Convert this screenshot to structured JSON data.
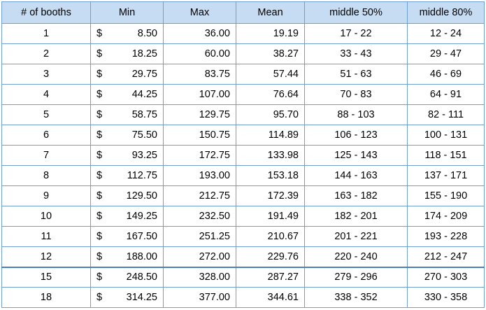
{
  "headers": [
    "# of booths",
    "Min",
    "Max",
    "Mean",
    "middle 50%",
    "middle 80%"
  ],
  "currency_symbol": "$",
  "rows": [
    {
      "booths": "1",
      "min": "8.50",
      "max": "36.00",
      "mean": "19.19",
      "mid50": "17 - 22",
      "mid80": "12 - 24"
    },
    {
      "booths": "2",
      "min": "18.25",
      "max": "60.00",
      "mean": "38.27",
      "mid50": "33 - 43",
      "mid80": "29 - 47"
    },
    {
      "booths": "3",
      "min": "29.75",
      "max": "83.75",
      "mean": "57.44",
      "mid50": "51 - 63",
      "mid80": "46 - 69"
    },
    {
      "booths": "4",
      "min": "44.25",
      "max": "107.00",
      "mean": "76.64",
      "mid50": "70 - 83",
      "mid80": "64 - 91"
    },
    {
      "booths": "5",
      "min": "58.75",
      "max": "129.75",
      "mean": "95.70",
      "mid50": "88 - 103",
      "mid80": "82 - 111"
    },
    {
      "booths": "6",
      "min": "75.50",
      "max": "150.75",
      "mean": "114.89",
      "mid50": "106 - 123",
      "mid80": "100 - 131"
    },
    {
      "booths": "7",
      "min": "93.25",
      "max": "172.75",
      "mean": "133.98",
      "mid50": "125 - 143",
      "mid80": "118 - 151"
    },
    {
      "booths": "8",
      "min": "112.75",
      "max": "193.00",
      "mean": "153.18",
      "mid50": "144 - 163",
      "mid80": "137 - 171"
    },
    {
      "booths": "9",
      "min": "129.50",
      "max": "212.75",
      "mean": "172.39",
      "mid50": "163 - 182",
      "mid80": "155 - 190"
    },
    {
      "booths": "10",
      "min": "149.25",
      "max": "232.50",
      "mean": "191.49",
      "mid50": "182 - 201",
      "mid80": "174 - 209"
    },
    {
      "booths": "11",
      "min": "167.50",
      "max": "251.25",
      "mean": "210.67",
      "mid50": "201 - 221",
      "mid80": "193 - 228"
    },
    {
      "booths": "12",
      "min": "188.00",
      "max": "272.00",
      "mean": "229.76",
      "mid50": "220 - 240",
      "mid80": "212 - 247"
    },
    {
      "booths": "15",
      "min": "248.50",
      "max": "328.00",
      "mean": "287.27",
      "mid50": "279 - 296",
      "mid80": "270 - 303"
    },
    {
      "booths": "18",
      "min": "314.25",
      "max": "377.00",
      "mean": "344.61",
      "mid50": "338 - 352",
      "mid80": "330 - 358"
    }
  ],
  "colors": {
    "header_bg": "#c6dcf2",
    "grid": "#6f9fd0"
  }
}
